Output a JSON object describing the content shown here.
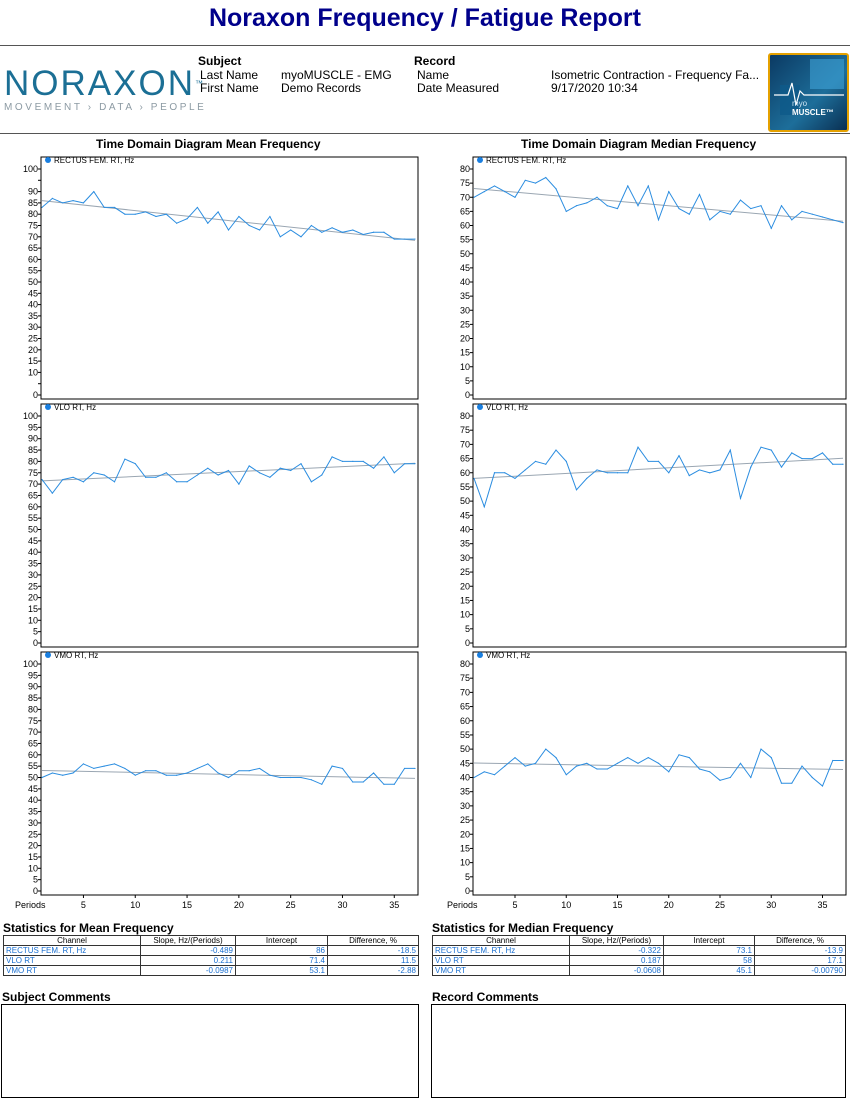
{
  "report": {
    "title": "Noraxon Frequency / Fatigue Report",
    "logo_word": "NORAXON",
    "logo_tm": "™",
    "logo_tagline": "MOVEMENT › DATA › PEOPLE",
    "badge_line1": "myo",
    "badge_line2": "MUSCLE™"
  },
  "subject": {
    "heading": "Subject",
    "last_name_label": "Last Name",
    "last_name_value": "myoMUSCLE - EMG",
    "first_name_label": "First Name",
    "first_name_value": "Demo Records"
  },
  "record": {
    "heading": "Record",
    "name_label": "Name",
    "name_value": "Isometric Contraction - Frequency Fa...",
    "date_label": "Date Measured",
    "date_value": "9/17/2020 10:34"
  },
  "colors": {
    "line": "#2b8de0",
    "trend": "#9aa6b2",
    "legend_dot": "#1a7fe0",
    "title": "#00008b"
  },
  "chart_data": [
    {
      "type": "line",
      "column_title": "Time Domain Diagram Mean Frequency",
      "series_name": "RECTUS FEM. RT, Hz",
      "ylim": [
        0,
        100
      ],
      "yticks": [
        0,
        5,
        10,
        15,
        20,
        25,
        30,
        35,
        40,
        45,
        50,
        55,
        60,
        65,
        70,
        75,
        80,
        85,
        90,
        95,
        100
      ],
      "yticklabels": [
        "0",
        "",
        "10",
        "15",
        "20",
        "25",
        "30",
        "35",
        "40",
        "45",
        "50",
        "55",
        "60",
        "65",
        "70",
        "75",
        "80",
        "85",
        "90",
        "",
        "100"
      ],
      "x": [
        1,
        2,
        3,
        4,
        5,
        6,
        7,
        8,
        9,
        10,
        11,
        12,
        13,
        14,
        15,
        16,
        17,
        18,
        19,
        20,
        21,
        22,
        23,
        24,
        25,
        26,
        27,
        28,
        29,
        30,
        31,
        32,
        33,
        34,
        35,
        36,
        37
      ],
      "values": [
        83,
        87,
        85,
        86,
        85,
        90,
        83,
        83,
        80,
        80,
        81,
        79,
        80,
        76,
        78,
        83,
        76,
        81,
        73,
        79,
        75,
        73,
        79,
        70,
        73,
        70,
        75,
        72,
        74,
        72,
        73,
        71,
        72,
        72,
        69,
        69,
        69
      ],
      "trend": [
        86,
        68.4
      ]
    },
    {
      "type": "line",
      "column_title": "Time Domain Diagram Median Frequency",
      "series_name": "RECTUS FEM. RT, Hz",
      "ylim": [
        0,
        80
      ],
      "yticks": [
        0,
        5,
        10,
        15,
        20,
        25,
        30,
        35,
        40,
        45,
        50,
        55,
        60,
        65,
        70,
        75,
        80
      ],
      "yticklabels": [
        "0",
        "5",
        "10",
        "15",
        "20",
        "25",
        "30",
        "35",
        "40",
        "45",
        "50",
        "55",
        "60",
        "65",
        "70",
        "75",
        "80"
      ],
      "x": [
        1,
        2,
        3,
        4,
        5,
        6,
        7,
        8,
        9,
        10,
        11,
        12,
        13,
        14,
        15,
        16,
        17,
        18,
        19,
        20,
        21,
        22,
        23,
        24,
        25,
        26,
        27,
        28,
        29,
        30,
        31,
        32,
        33,
        34,
        35,
        36,
        37
      ],
      "values": [
        70,
        72,
        74,
        72,
        70,
        76,
        75,
        77,
        73,
        65,
        67,
        68,
        70,
        67,
        66,
        74,
        67,
        74,
        62,
        72,
        66,
        64,
        71,
        62,
        65,
        64,
        69,
        66,
        67,
        59,
        67,
        62,
        65,
        64,
        63,
        62,
        61
      ],
      "trend": [
        73.1,
        61.5
      ]
    },
    {
      "type": "line",
      "column_title": "",
      "series_name": "VLO RT, Hz",
      "ylim": [
        0,
        100
      ],
      "yticks": [
        0,
        5,
        10,
        15,
        20,
        25,
        30,
        35,
        40,
        45,
        50,
        55,
        60,
        65,
        70,
        75,
        80,
        85,
        90,
        95,
        100
      ],
      "yticklabels": [
        "0",
        "5",
        "10",
        "15",
        "20",
        "25",
        "30",
        "35",
        "40",
        "45",
        "50",
        "55",
        "60",
        "65",
        "70",
        "75",
        "80",
        "85",
        "90",
        "95",
        "100"
      ],
      "x": [
        1,
        2,
        3,
        4,
        5,
        6,
        7,
        8,
        9,
        10,
        11,
        12,
        13,
        14,
        15,
        16,
        17,
        18,
        19,
        20,
        21,
        22,
        23,
        24,
        25,
        26,
        27,
        28,
        29,
        30,
        31,
        32,
        33,
        34,
        35,
        36,
        37
      ],
      "values": [
        72,
        66,
        72,
        73,
        71,
        75,
        74,
        71,
        81,
        79,
        73,
        73,
        75,
        71,
        71,
        74,
        77,
        74,
        76,
        70,
        78,
        75,
        73,
        77,
        76,
        79,
        71,
        74,
        82,
        80,
        80,
        80,
        77,
        82,
        75,
        79,
        79
      ],
      "trend": [
        71.4,
        79.2
      ]
    },
    {
      "type": "line",
      "column_title": "",
      "series_name": "VLO RT, Hz",
      "ylim": [
        0,
        80
      ],
      "yticks": [
        0,
        5,
        10,
        15,
        20,
        25,
        30,
        35,
        40,
        45,
        50,
        55,
        60,
        65,
        70,
        75,
        80
      ],
      "yticklabels": [
        "0",
        "5",
        "10",
        "15",
        "20",
        "25",
        "30",
        "35",
        "40",
        "45",
        "50",
        "55",
        "60",
        "65",
        "70",
        "75",
        "80"
      ],
      "x": [
        1,
        2,
        3,
        4,
        5,
        6,
        7,
        8,
        9,
        10,
        11,
        12,
        13,
        14,
        15,
        16,
        17,
        18,
        19,
        20,
        21,
        22,
        23,
        24,
        25,
        26,
        27,
        28,
        29,
        30,
        31,
        32,
        33,
        34,
        35,
        36,
        37
      ],
      "values": [
        58,
        48,
        60,
        60,
        58,
        61,
        64,
        63,
        68,
        64,
        54,
        58,
        61,
        60,
        60,
        60,
        69,
        64,
        64,
        60,
        66,
        59,
        61,
        60,
        61,
        68,
        51,
        62,
        69,
        68,
        62,
        67,
        65,
        65,
        67,
        63,
        63
      ],
      "trend": [
        58,
        65.1
      ]
    },
    {
      "type": "line",
      "column_title": "",
      "series_name": "VMO RT, Hz",
      "ylim": [
        0,
        100
      ],
      "yticks": [
        0,
        5,
        10,
        15,
        20,
        25,
        30,
        35,
        40,
        45,
        50,
        55,
        60,
        65,
        70,
        75,
        80,
        85,
        90,
        95,
        100
      ],
      "yticklabels": [
        "0",
        "5",
        "10",
        "15",
        "20",
        "25",
        "30",
        "35",
        "40",
        "45",
        "50",
        "55",
        "60",
        "65",
        "70",
        "75",
        "80",
        "85",
        "90",
        "95",
        "100"
      ],
      "x": [
        1,
        2,
        3,
        4,
        5,
        6,
        7,
        8,
        9,
        10,
        11,
        12,
        13,
        14,
        15,
        16,
        17,
        18,
        19,
        20,
        21,
        22,
        23,
        24,
        25,
        26,
        27,
        28,
        29,
        30,
        31,
        32,
        33,
        34,
        35,
        36,
        37
      ],
      "values": [
        50,
        52,
        51,
        52,
        56,
        54,
        55,
        56,
        54,
        51,
        53,
        53,
        51,
        51,
        52,
        54,
        56,
        52,
        50,
        53,
        53,
        54,
        51,
        50,
        50,
        50,
        49,
        47,
        55,
        54,
        48,
        48,
        52,
        47,
        47,
        54,
        54
      ],
      "trend": [
        53.1,
        49.6
      ]
    },
    {
      "type": "line",
      "column_title": "",
      "series_name": "VMO RT, Hz",
      "ylim": [
        0,
        80
      ],
      "yticks": [
        0,
        5,
        10,
        15,
        20,
        25,
        30,
        35,
        40,
        45,
        50,
        55,
        60,
        65,
        70,
        75,
        80
      ],
      "yticklabels": [
        "0",
        "5",
        "10",
        "15",
        "20",
        "25",
        "30",
        "35",
        "40",
        "45",
        "50",
        "55",
        "60",
        "65",
        "70",
        "75",
        "80"
      ],
      "x": [
        1,
        2,
        3,
        4,
        5,
        6,
        7,
        8,
        9,
        10,
        11,
        12,
        13,
        14,
        15,
        16,
        17,
        18,
        19,
        20,
        21,
        22,
        23,
        24,
        25,
        26,
        27,
        28,
        29,
        30,
        31,
        32,
        33,
        34,
        35,
        36,
        37
      ],
      "values": [
        40,
        42,
        41,
        44,
        47,
        44,
        45,
        50,
        47,
        41,
        44,
        45,
        43,
        43,
        45,
        47,
        45,
        47,
        45,
        42,
        48,
        47,
        43,
        42,
        39,
        40,
        45,
        40,
        50,
        47,
        38,
        38,
        44,
        40,
        37,
        46,
        46
      ],
      "trend": [
        45.1,
        42.8
      ]
    }
  ],
  "axis": {
    "x_label": "Periods",
    "x_ticks": [
      5,
      10,
      15,
      20,
      25,
      30,
      35
    ],
    "x_tick_labels": [
      "5",
      "10",
      "15",
      "20",
      "25",
      "30",
      "35"
    ],
    "xlim": [
      1,
      37
    ]
  },
  "stats": {
    "mean": {
      "title": "Statistics for Mean Frequency",
      "headers": [
        "Channel",
        "Slope, Hz/(Periods)",
        "Intercept",
        "Difference, %"
      ],
      "rows": [
        [
          "RECTUS FEM. RT, Hz",
          "-0.489",
          "86",
          "-18.5"
        ],
        [
          "VLO RT",
          "0.211",
          "71.4",
          "11.5"
        ],
        [
          "VMO RT",
          "-0.0987",
          "53.1",
          "-2.88"
        ]
      ]
    },
    "median": {
      "title": "Statistics for Median Frequency",
      "headers": [
        "Channel",
        "Slope, Hz/(Periods)",
        "Intercept",
        "Difference, %"
      ],
      "rows": [
        [
          "RECTUS FEM. RT, Hz",
          "-0.322",
          "73.1",
          "-13.9"
        ],
        [
          "VLO RT",
          "0.187",
          "58",
          "17.1"
        ],
        [
          "VMO RT",
          "-0.0608",
          "45.1",
          "-0.00790"
        ]
      ]
    }
  },
  "comments": {
    "subject_title": "Subject Comments",
    "record_title": "Record Comments"
  }
}
